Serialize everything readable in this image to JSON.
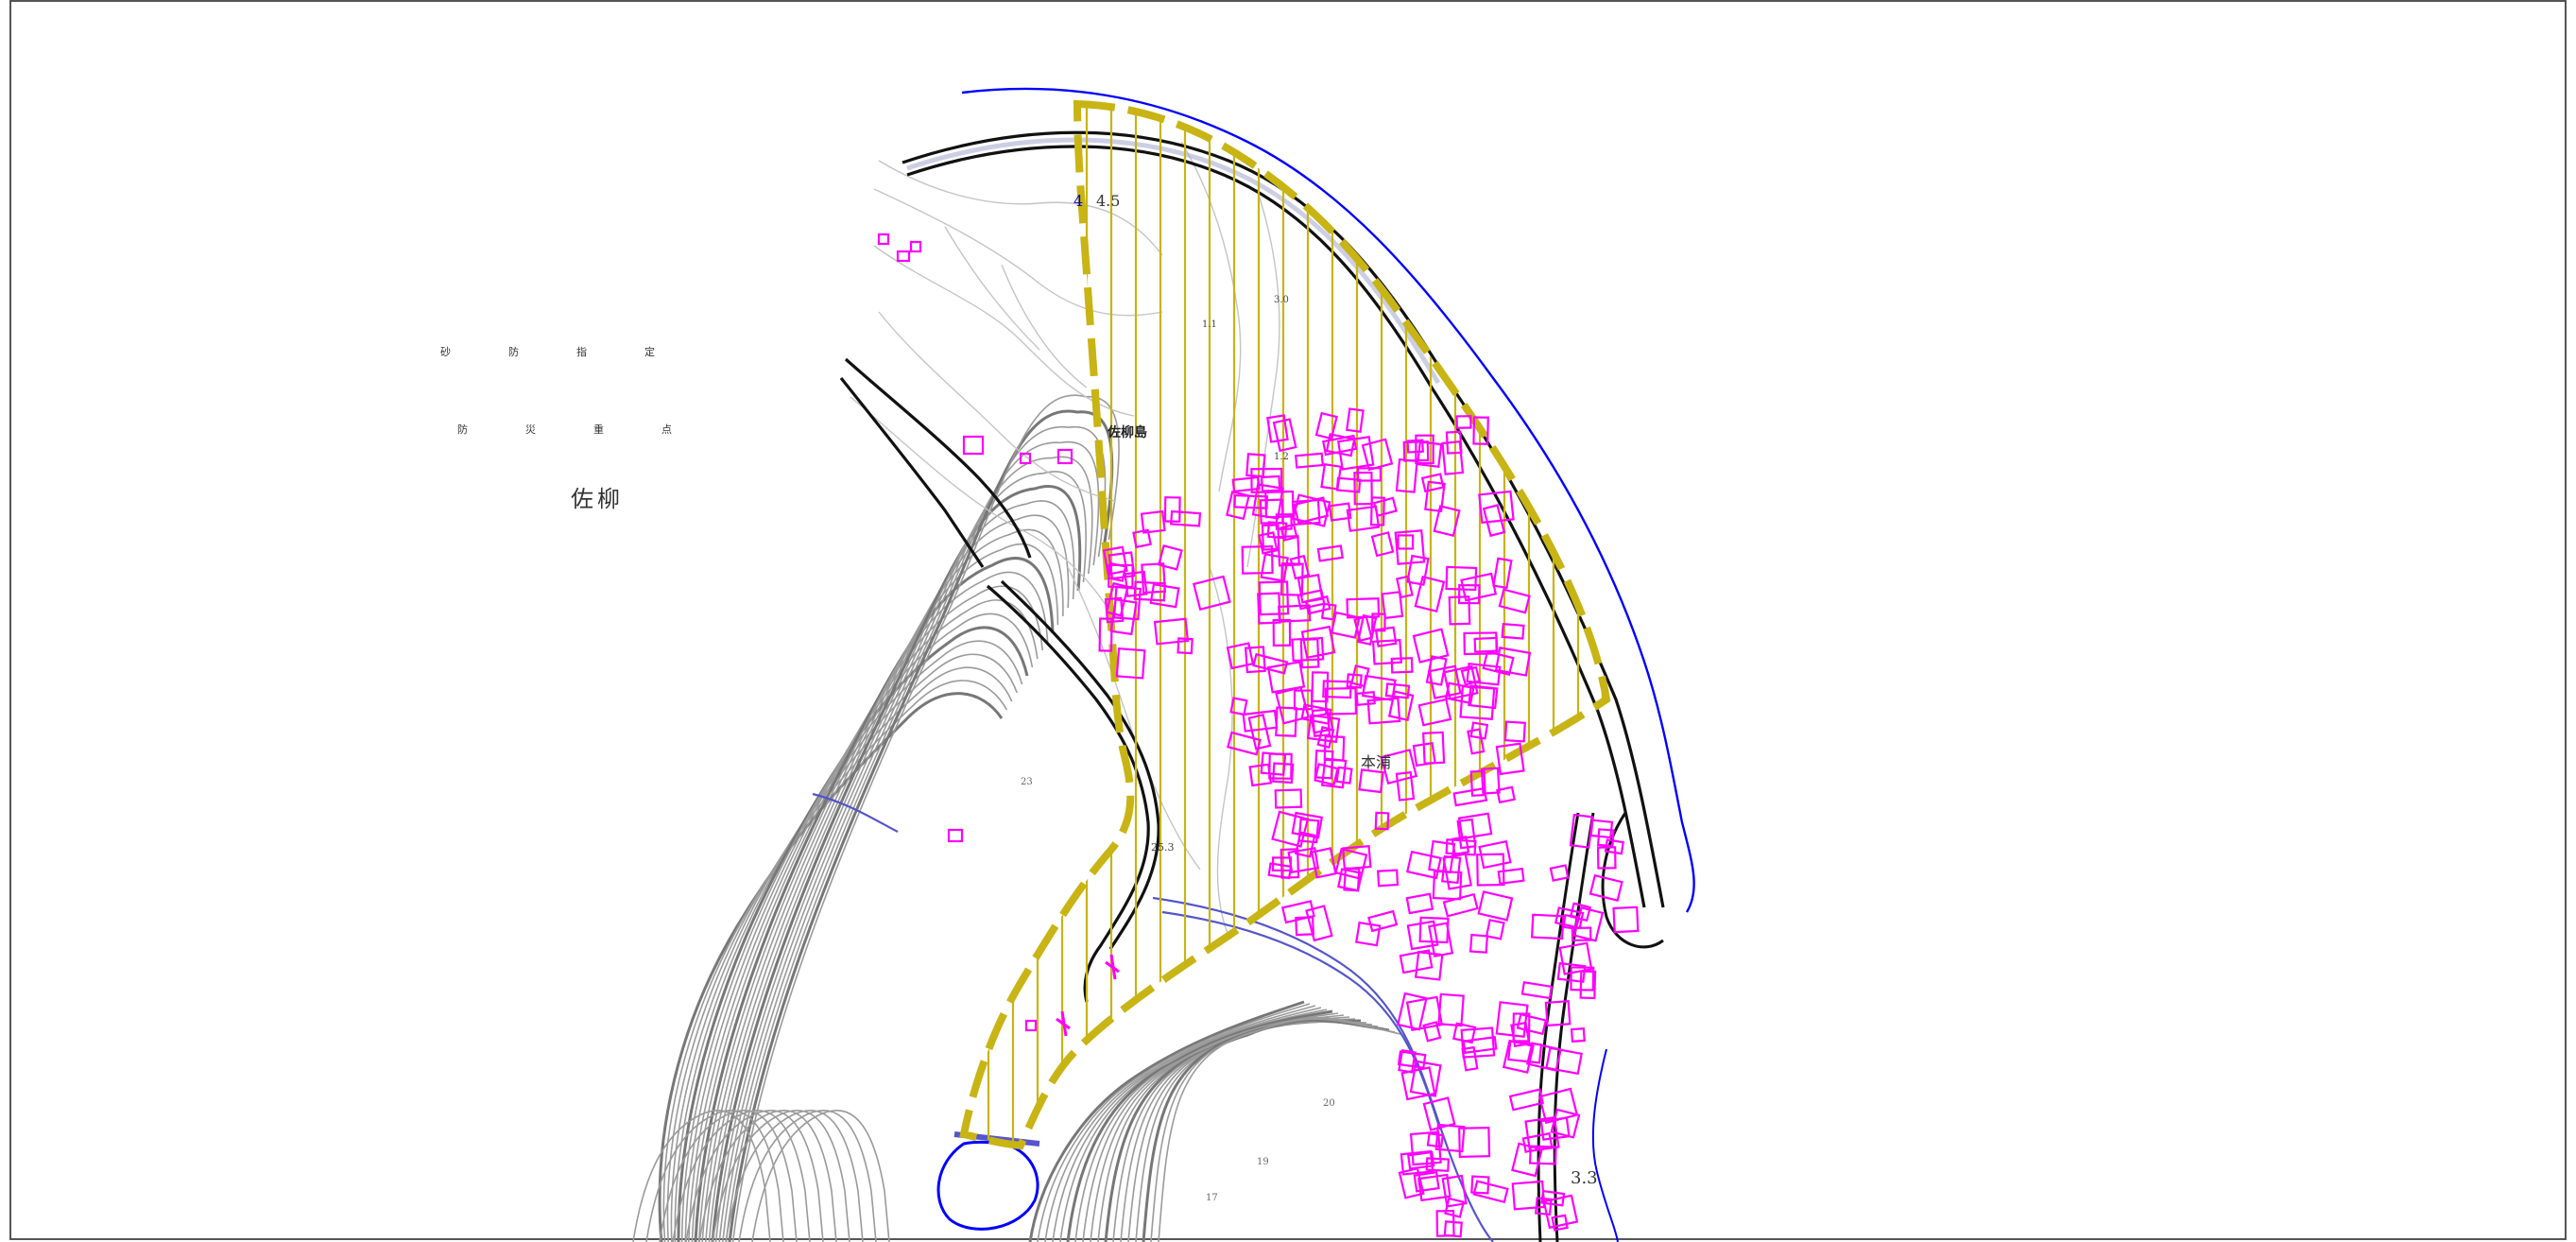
{
  "legend": {
    "row1": [
      "砂",
      "防",
      "指",
      "定"
    ],
    "row2": [
      "防",
      "災",
      "重",
      "点"
    ]
  },
  "place_title": "佐柳",
  "labels": {
    "sayanagi_island": "佐柳島",
    "village": "本浦",
    "elev_top": "4.5",
    "elev_right": "3.3",
    "contour_30": "3.0",
    "contour_11": "1.1",
    "contour_12": "1.2",
    "contour_253": "25.3",
    "contour_20": "20",
    "contour_19": "19",
    "contour_17": "17",
    "contour_23": "23"
  },
  "colors": {
    "zone_outline": "#c8b414",
    "zone_hatch": "#c8b414",
    "buildings": "#ff00ff",
    "coast": "#0000ff",
    "road": "#111111",
    "contour": "#9a9a9a",
    "contour_index": "#777777"
  }
}
